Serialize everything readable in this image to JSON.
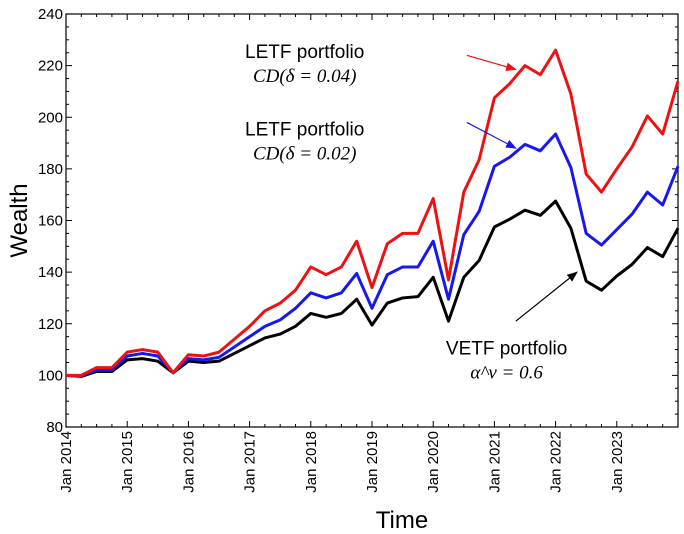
{
  "chart_data": {
    "type": "line",
    "xlabel": "Time",
    "ylabel": "Wealth",
    "xlim": [
      2014.0,
      2024.0
    ],
    "ylim": [
      80,
      240
    ],
    "yticks": [
      80,
      100,
      120,
      140,
      160,
      180,
      200,
      220,
      240
    ],
    "xticks": [
      {
        "value": 2014,
        "label": "Jan 2014"
      },
      {
        "value": 2015,
        "label": "Jan 2015"
      },
      {
        "value": 2016,
        "label": "Jan 2016"
      },
      {
        "value": 2017,
        "label": "Jan 2017"
      },
      {
        "value": 2018,
        "label": "Jan 2018"
      },
      {
        "value": 2019,
        "label": "Jan 2019"
      },
      {
        "value": 2020,
        "label": "Jan 2020"
      },
      {
        "value": 2021,
        "label": "Jan 2021"
      },
      {
        "value": 2022,
        "label": "Jan 2022"
      },
      {
        "value": 2023,
        "label": "Jan 2023"
      }
    ],
    "x": [
      2014.0,
      2014.25,
      2014.5,
      2014.75,
      2015.0,
      2015.25,
      2015.5,
      2015.75,
      2016.0,
      2016.25,
      2016.5,
      2016.75,
      2017.0,
      2017.25,
      2017.5,
      2017.75,
      2018.0,
      2018.25,
      2018.5,
      2018.75,
      2019.0,
      2019.25,
      2019.5,
      2019.75,
      2020.0,
      2020.25,
      2020.5,
      2020.75,
      2021.0,
      2021.25,
      2021.5,
      2021.75,
      2022.0,
      2022.25,
      2022.5,
      2022.75,
      2023.0,
      2023.25,
      2023.5,
      2023.75,
      2024.0
    ],
    "series": [
      {
        "name": "LETF portfolio CD(δ = 0.04)",
        "color": "#ee1111",
        "values": [
          100,
          100,
          103,
          103,
          109,
          110,
          109,
          101,
          108,
          107.5,
          109,
          114,
          119,
          125,
          128,
          133,
          142,
          139,
          142,
          152,
          134,
          151,
          155,
          155,
          168.5,
          137,
          171,
          183.5,
          207.5,
          213,
          220,
          216.5,
          226,
          209,
          178,
          171,
          180,
          188.5,
          200.5,
          193.5,
          214
        ]
      },
      {
        "name": "LETF portfolio CD(δ = 0.02)",
        "color": "#1818ee",
        "values": [
          100,
          99.8,
          102,
          102,
          107.5,
          108.5,
          107.5,
          101,
          106.5,
          106,
          107,
          111,
          115,
          119,
          121.5,
          126,
          132,
          130,
          132,
          139.5,
          126,
          139,
          142,
          142,
          152,
          129.5,
          154.5,
          163.5,
          181,
          184.5,
          189.5,
          187,
          193.5,
          180.5,
          155,
          150.5,
          156.5,
          162.5,
          171,
          166,
          181
        ]
      },
      {
        "name": "VETF portfolio α^v = 0.6",
        "color": "#000000",
        "values": [
          100,
          99.6,
          101.5,
          101.5,
          106,
          106.5,
          105.5,
          101,
          105.5,
          105,
          105.5,
          108.5,
          111.5,
          114.5,
          116,
          119,
          124,
          122.5,
          124,
          129.5,
          119.5,
          128,
          130,
          130.5,
          138,
          121,
          138,
          144.5,
          157.5,
          160.5,
          164,
          162,
          167.5,
          157,
          136.5,
          133,
          138.5,
          143,
          149.5,
          146,
          157
        ]
      }
    ],
    "annotations": [
      {
        "id": "red",
        "line1": "LETF portfolio",
        "line2": "CD(δ = 0.04)",
        "color": "#ee1111",
        "text_at": [
          2017.9,
          223
        ],
        "arrow_from": [
          2020.55,
          224
        ],
        "arrow_to": [
          2021.35,
          218.5
        ]
      },
      {
        "id": "blue",
        "line1": "LETF portfolio",
        "line2": "CD(δ = 0.02)",
        "color": "#1818ee",
        "text_at": [
          2017.9,
          193
        ],
        "arrow_from": [
          2020.55,
          198
        ],
        "arrow_to": [
          2021.35,
          188
        ]
      },
      {
        "id": "black",
        "line1": "VETF portfolio",
        "line2": "α^v = 0.6",
        "color": "#000000",
        "text_at": [
          2021.2,
          108
        ],
        "arrow_from": [
          2021.35,
          121
        ],
        "arrow_to": [
          2022.35,
          140
        ]
      }
    ]
  }
}
